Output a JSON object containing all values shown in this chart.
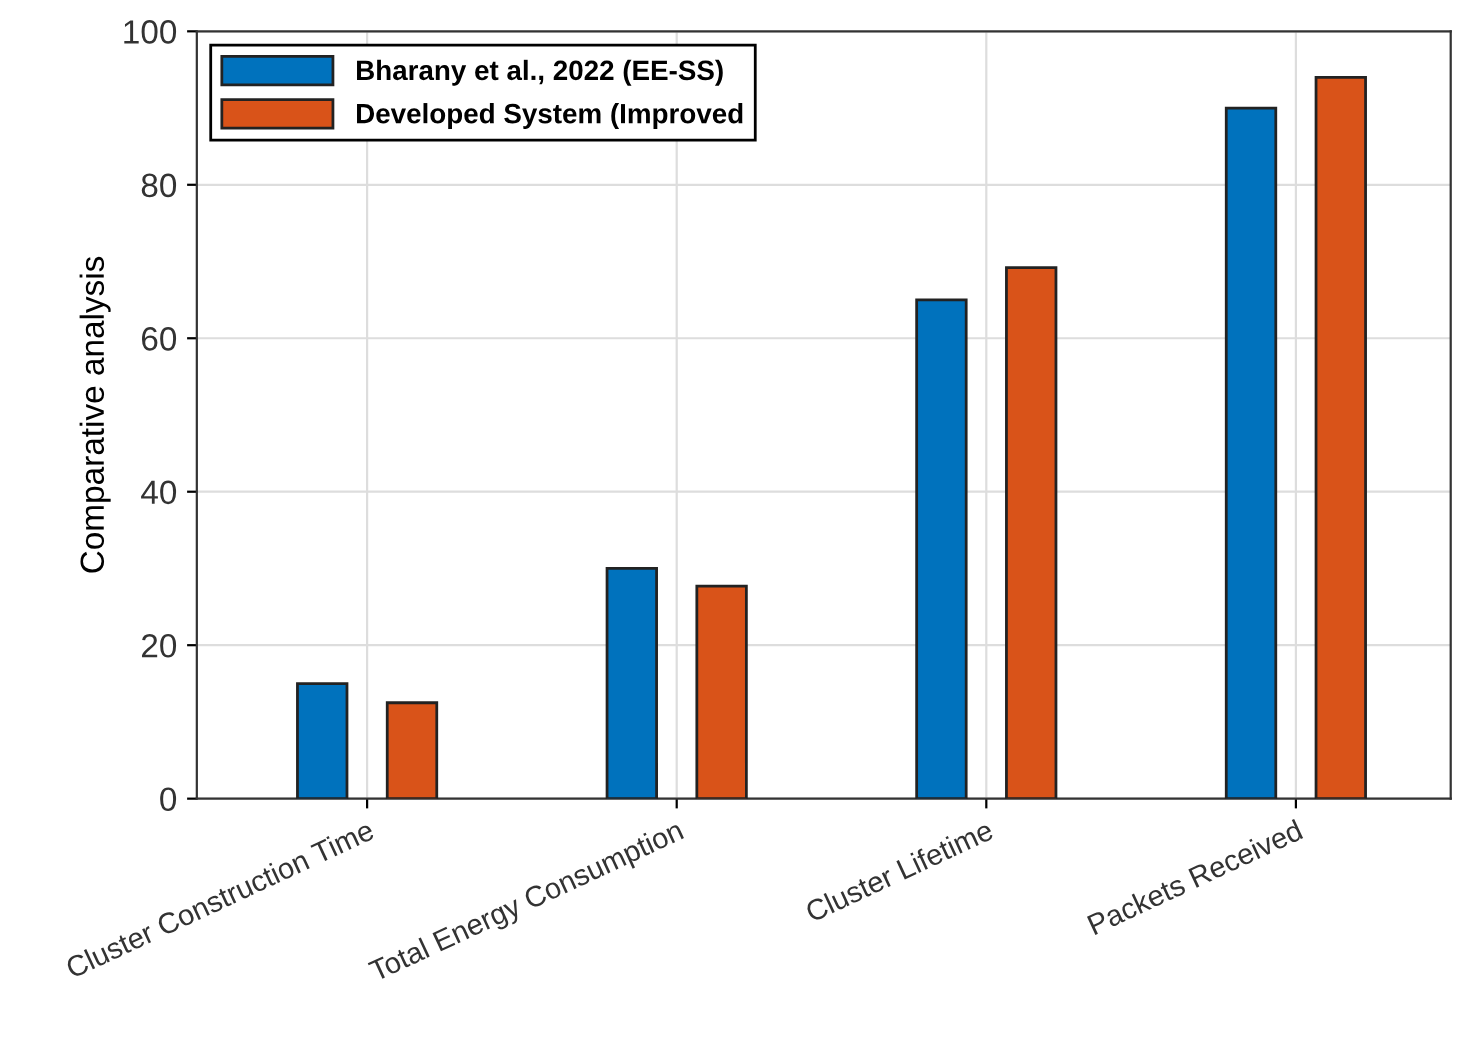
{
  "chart_data": {
    "type": "bar",
    "ylabel": "Comparative analysis",
    "categories": [
      "Cluster Construction Time",
      "Total Energy Consumption",
      "Cluster Lifetime",
      "Packets Received"
    ],
    "series": [
      {
        "name": "Bharany et al., 2022 (EE-SS)",
        "color": "#0072bd",
        "values": [
          15,
          30,
          65,
          90
        ]
      },
      {
        "name": "Developed System (Improved",
        "color": "#d95319",
        "values": [
          12.5,
          27.7,
          69.2,
          94
        ]
      }
    ],
    "ylim": [
      0,
      100
    ],
    "yticks": [
      0,
      20,
      40,
      60,
      80,
      100
    ],
    "grid": true,
    "legend": "top left"
  }
}
